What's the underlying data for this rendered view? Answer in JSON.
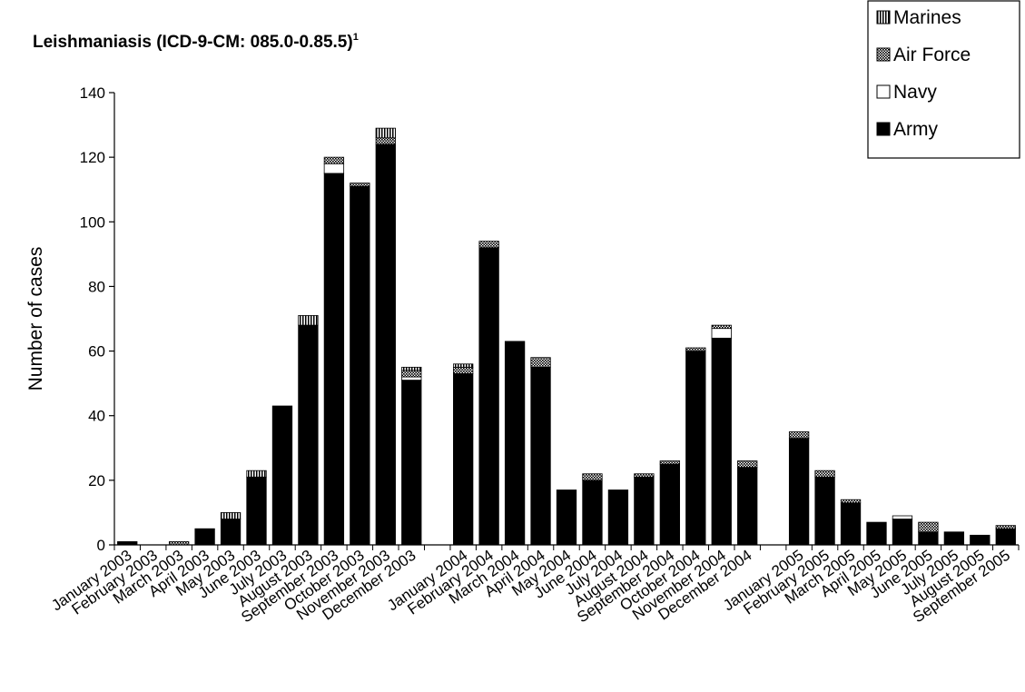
{
  "chart_data": {
    "type": "bar",
    "stacked": true,
    "title": "Leishmaniasis (ICD-9-CM: 085.0-0.85.5)",
    "title_superscript": "1",
    "ylabel": "Number of cases",
    "xlabel": "",
    "ylim": [
      0,
      140
    ],
    "yticks": [
      "0",
      "20",
      "40",
      "60",
      "80",
      "100",
      "120",
      "140"
    ],
    "grid": false,
    "legend_position": "top-right",
    "categories": [
      "January 2003",
      "February 2003",
      "March 2003",
      "April 2003",
      "May 2003",
      "June 2003",
      "July 2003",
      "August 2003",
      "September 2003",
      "October 2003",
      "November 2003",
      "December 2003",
      "",
      "January 2004",
      "February 2004",
      "March 2004",
      "April 2004",
      "May 2004",
      "June 2004",
      "July 2004",
      "August 2004",
      "September 2004",
      "October 2004",
      "November 2004",
      "December 2004",
      "",
      "January 2005",
      "February 2005",
      "March 2005",
      "April 2005",
      "May 2005",
      "June 2005",
      "July 2005",
      "August 2005",
      "September 2005"
    ],
    "series": [
      {
        "name": "Army",
        "color": "#000000",
        "pattern": "solid",
        "values": [
          1,
          0,
          0,
          5,
          8,
          21,
          43,
          68,
          115,
          111,
          124,
          51,
          null,
          53,
          92,
          63,
          55,
          17,
          20,
          17,
          21,
          25,
          60,
          64,
          24,
          null,
          33,
          21,
          13,
          7,
          8,
          4,
          4,
          3,
          5
        ]
      },
      {
        "name": "Navy",
        "color": "#ffffff",
        "pattern": "white",
        "values": [
          0,
          0,
          0,
          0,
          0,
          0,
          0,
          0,
          3,
          0,
          0,
          1,
          null,
          0,
          0,
          0,
          0,
          0,
          0,
          0,
          0,
          0,
          0,
          3,
          0,
          null,
          0,
          0,
          0,
          0,
          1,
          0,
          0,
          0,
          0
        ]
      },
      {
        "name": "Air Force",
        "color": "#000000",
        "pattern": "dotted",
        "values": [
          0,
          0,
          1,
          0,
          0,
          0,
          0,
          0,
          2,
          1,
          2,
          2,
          null,
          2,
          2,
          0,
          3,
          0,
          2,
          0,
          1,
          1,
          1,
          1,
          2,
          null,
          2,
          2,
          1,
          0,
          0,
          3,
          0,
          0,
          1
        ]
      },
      {
        "name": "Marines",
        "color": "#000000",
        "pattern": "vertical-stripes",
        "values": [
          0,
          0,
          0,
          0,
          2,
          2,
          0,
          3,
          0,
          0,
          3,
          1,
          null,
          1,
          0,
          0,
          0,
          0,
          0,
          0,
          0,
          0,
          0,
          0,
          0,
          null,
          0,
          0,
          0,
          0,
          0,
          0,
          0,
          0,
          0
        ]
      }
    ],
    "legend_order": [
      "Marines",
      "Air Force",
      "Navy",
      "Army"
    ]
  }
}
